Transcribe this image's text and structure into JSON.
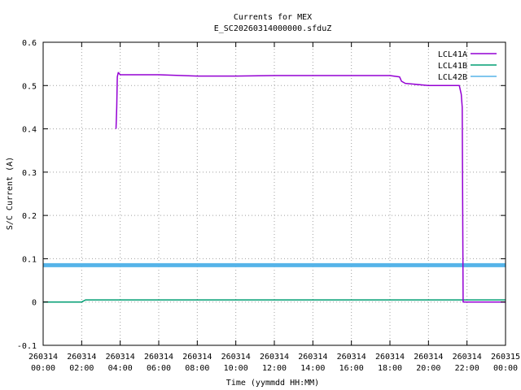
{
  "chart_data": {
    "type": "line",
    "title": "Currents for MEX",
    "subtitle": "E_SC20260314000000.sfduZ",
    "xlabel": "Time (yymmdd HH:MM)",
    "ylabel": "S/C Current (A)",
    "xlim": [
      0,
      24
    ],
    "ylim": [
      -0.1,
      0.6
    ],
    "grid": true,
    "legend_position": "top-right",
    "x_ticks": [
      {
        "v": 0,
        "date": "260314",
        "time": "00:00"
      },
      {
        "v": 2,
        "date": "260314",
        "time": "02:00"
      },
      {
        "v": 4,
        "date": "260314",
        "time": "04:00"
      },
      {
        "v": 6,
        "date": "260314",
        "time": "06:00"
      },
      {
        "v": 8,
        "date": "260314",
        "time": "08:00"
      },
      {
        "v": 10,
        "date": "260314",
        "time": "10:00"
      },
      {
        "v": 12,
        "date": "260314",
        "time": "12:00"
      },
      {
        "v": 14,
        "date": "260314",
        "time": "14:00"
      },
      {
        "v": 16,
        "date": "260314",
        "time": "16:00"
      },
      {
        "v": 18,
        "date": "260314",
        "time": "18:00"
      },
      {
        "v": 20,
        "date": "260314",
        "time": "20:00"
      },
      {
        "v": 22,
        "date": "260314",
        "time": "22:00"
      },
      {
        "v": 24,
        "date": "260315",
        "time": "00:00"
      }
    ],
    "y_ticks": [
      {
        "v": -0.1,
        "label": "-0.1"
      },
      {
        "v": 0,
        "label": "0"
      },
      {
        "v": 0.1,
        "label": "0.1"
      },
      {
        "v": 0.2,
        "label": "0.2"
      },
      {
        "v": 0.3,
        "label": "0.3"
      },
      {
        "v": 0.4,
        "label": "0.4"
      },
      {
        "v": 0.5,
        "label": "0.5"
      },
      {
        "v": 0.6,
        "label": "0.6"
      }
    ],
    "series": [
      {
        "name": "LCL41A",
        "color": "#9400d3",
        "x": [
          0,
          3.6,
          3.78,
          3.8,
          3.82,
          3.85,
          3.9,
          4.0,
          6,
          8,
          10,
          12,
          14,
          16,
          18,
          18.5,
          18.6,
          18.8,
          20,
          21.6,
          21.7,
          21.75,
          21.8,
          24
        ],
        "y": [
          null,
          null,
          0.4,
          0.42,
          0.45,
          0.52,
          0.53,
          0.525,
          0.525,
          0.522,
          0.522,
          0.523,
          0.523,
          0.523,
          0.523,
          0.52,
          0.51,
          0.505,
          0.5,
          0.5,
          0.48,
          0.45,
          0.0,
          0.0
        ]
      },
      {
        "name": "LCL41B",
        "color": "#009e73",
        "x": [
          0,
          2,
          2.2,
          4,
          8,
          12,
          16,
          20,
          22,
          24
        ],
        "y": [
          0.0,
          0.0,
          0.005,
          0.005,
          0.005,
          0.005,
          0.005,
          0.005,
          0.005,
          0.005
        ]
      },
      {
        "name": "LCL42B",
        "color": "#56b4e9",
        "x": [
          0,
          4,
          8,
          12,
          16,
          20,
          22,
          24
        ],
        "y": [
          0.085,
          0.085,
          0.085,
          0.085,
          0.085,
          0.085,
          0.085,
          0.085
        ]
      }
    ]
  }
}
